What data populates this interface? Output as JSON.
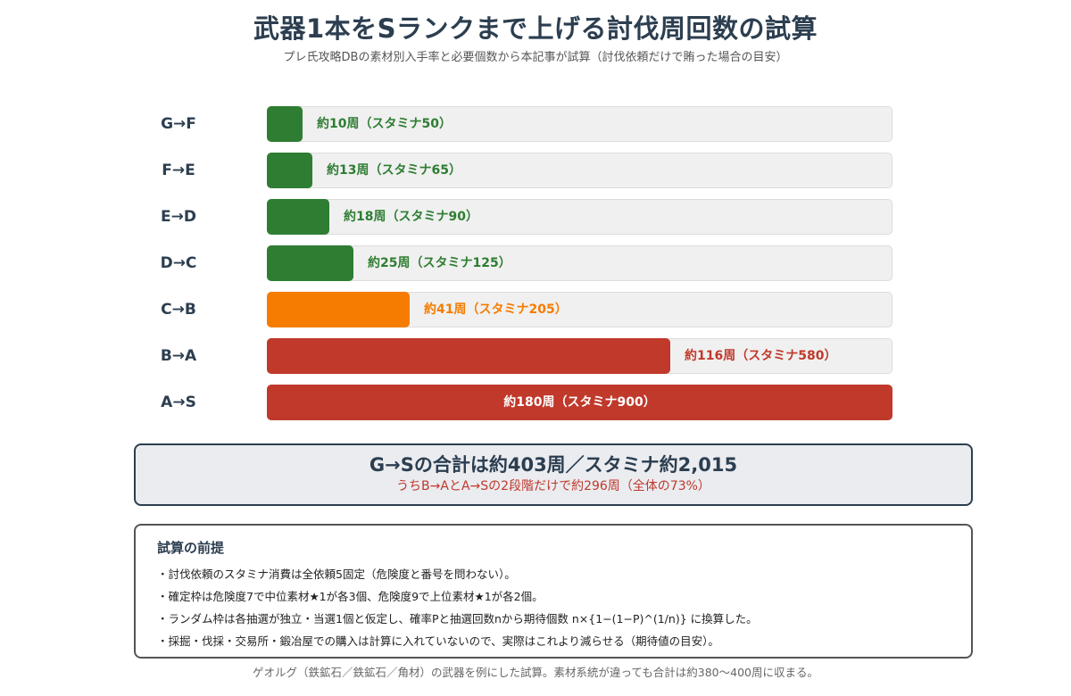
{
  "header": {
    "title": "武器1本をSランクまで上げる討伐周回数の試算",
    "subtitle": "プレ氏攻略DBの素材別入手率と必要個数から本記事が試算（討伐依頼だけで賄った場合の目安）"
  },
  "colors": {
    "green": "#2e7d32",
    "orange": "#f57c00",
    "red": "#c0392b"
  },
  "chart_data": {
    "type": "bar",
    "orientation": "horizontal",
    "categories": [
      "G→F",
      "F→E",
      "E→D",
      "D→C",
      "C→B",
      "B→A",
      "A→S"
    ],
    "values": [
      10,
      13,
      18,
      25,
      41,
      116,
      180
    ],
    "stamina": [
      50,
      65,
      90,
      125,
      205,
      580,
      900
    ],
    "data_labels": [
      "約10周（スタミナ50）",
      "約13周（スタミナ65）",
      "約18周（スタミナ90）",
      "約25周（スタミナ125）",
      "約41周（スタミナ205）",
      "約116周（スタミナ580）",
      "約180周（スタミナ900）"
    ],
    "bar_colors": [
      "green",
      "green",
      "green",
      "green",
      "orange",
      "red",
      "red"
    ],
    "xlim": [
      0,
      180
    ],
    "grid": false,
    "legend": "none"
  },
  "summary": {
    "main": "G→Sの合計は約403周／スタミナ約2,015",
    "sub": "うちB→AとA→Sの2段階だけで約296周（全体の73%）"
  },
  "notes": {
    "title": "試算の前提",
    "items": [
      "・討伐依頼のスタミナ消費は全依頼5固定（危険度と番号を問わない）。",
      "・確定枠は危険度7で中位素材★1が各3個、危険度9で上位素材★1が各2個。",
      "・ランダム枠は各抽選が独立・当選1個と仮定し、確率Pと抽選回数nから期待個数 n×{1−(1−P)^(1/n)} に換算した。",
      "・採掘・伐採・交易所・鍛冶屋での購入は計算に入れていないので、実際はこれより減らせる（期待値の目安）。"
    ]
  },
  "footer": {
    "text": "ゲオルグ（鉄鉱石／鉄鉱石／角材）の武器を例にした試算。素材系統が違っても合計は約380〜400周に収まる。"
  }
}
